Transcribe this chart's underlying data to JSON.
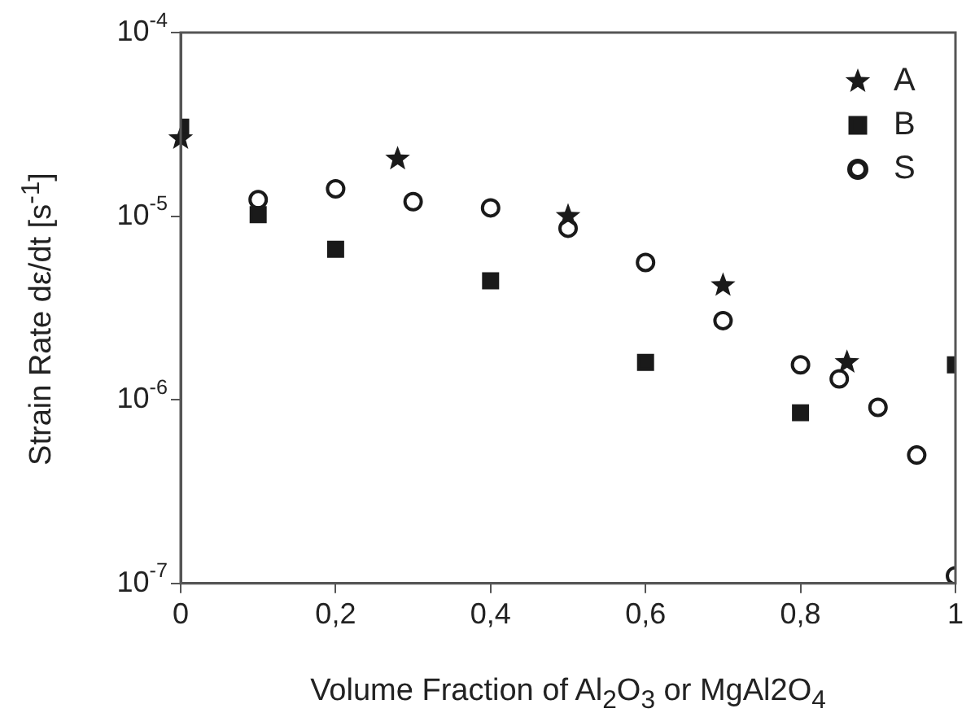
{
  "chart_data": {
    "type": "scatter",
    "xlabel": "Volume Fraction of Al$_{2}$O$_{3}$ or MgAl2O$_{4}$",
    "ylabel": "Strain Rate dε/dt [s$^{-1}$]",
    "log": "y",
    "grid": false,
    "legend": "top right",
    "xlim": [
      0,
      1
    ],
    "xticks": [
      0,
      {
        "value": 0.2,
        "label": "0,2"
      },
      {
        "value": 0.4,
        "label": "0,4"
      },
      {
        "value": 0.6,
        "label": "0,6"
      },
      {
        "value": 0.8,
        "label": "0,8"
      },
      1
    ],
    "ylim": [
      1e-07,
      0.0001
    ],
    "yticks": [
      {
        "value": 1e-07,
        "label": "10$^{-7}$"
      },
      {
        "value": 1e-06,
        "label": "10$^{-6}$"
      },
      {
        "value": 1e-05,
        "label": "10$^{-5}$"
      },
      {
        "value": 0.0001,
        "label": "10$^{-4}$"
      }
    ],
    "series": [
      {
        "name": "A",
        "color": "#1a1a1a",
        "marker": "star",
        "x": [
          0,
          0.28,
          0.5,
          0.7,
          0.86
        ],
        "values": [
          2.65e-05,
          2.05e-05,
          1e-05,
          4.2e-06,
          1.6e-06
        ]
      },
      {
        "name": "B",
        "color": "#1a1a1a",
        "marker": "square",
        "x": [
          0,
          0.1,
          0.2,
          0.4,
          0.6,
          0.8,
          1
        ],
        "values": [
          3.05e-05,
          1.02e-05,
          6.6e-06,
          4.45e-06,
          1.6e-06,
          8.5e-07,
          1.55e-06
        ]
      },
      {
        "name": "S",
        "color": "#1a1a1a",
        "marker": "circle",
        "x": [
          0.1,
          0.2,
          0.3,
          0.4,
          0.5,
          0.6,
          0.7,
          0.8,
          0.85,
          0.9,
          0.95,
          1
        ],
        "values": [
          1.23e-05,
          1.41e-05,
          1.2e-05,
          1.11e-05,
          8.6e-06,
          5.6e-06,
          2.7e-06,
          1.55e-06,
          1.3e-06,
          9.1e-07,
          5e-07,
          1.1e-07
        ]
      }
    ]
  }
}
